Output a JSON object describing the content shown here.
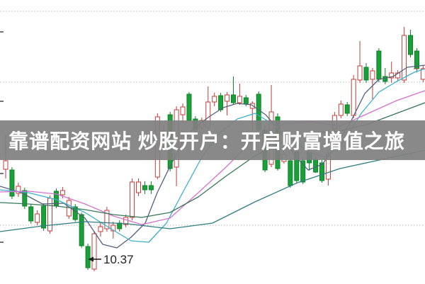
{
  "banner": {
    "text": "靠谱配资网站 炒股开户：开启财富增值之旅",
    "background": "#808080",
    "text_color": "#ffffff"
  },
  "chart_data": {
    "type": "candlestick",
    "title": "",
    "xlabel": "",
    "ylabel": "",
    "ylim": [
      10.19,
      14.2
    ],
    "grid": true,
    "gridline_prices": [
      14.04,
      13.04,
      12.03,
      11.02
    ],
    "tick_prices": [
      13.75,
      12.77,
      11.75,
      10.78
    ],
    "colors": {
      "up_stroke": "#c23b3b",
      "up_fill": "#ffffff",
      "down_stroke": "#0e8128",
      "down_fill": "#19a038",
      "grid": "#b3b3b3",
      "annotation": "#222222"
    },
    "candles": [
      [
        11.81,
        12.3,
        11.68,
        11.93
      ],
      [
        11.8,
        11.84,
        11.39,
        11.43
      ],
      [
        11.47,
        11.62,
        11.42,
        11.57
      ],
      [
        11.51,
        11.55,
        11.25,
        11.29
      ],
      [
        11.28,
        11.32,
        11.04,
        11.08
      ],
      [
        11.06,
        11.23,
        11.02,
        11.18
      ],
      [
        11.29,
        11.33,
        10.94,
        10.98
      ],
      [
        10.94,
        11.44,
        10.9,
        11.4
      ],
      [
        11.5,
        11.54,
        11.26,
        11.3
      ],
      [
        11.45,
        11.56,
        11.4,
        11.51
      ],
      [
        11.15,
        11.42,
        11.11,
        11.37
      ],
      [
        11.28,
        11.32,
        11.07,
        11.1
      ],
      [
        11.17,
        11.2,
        10.7,
        10.73
      ],
      [
        10.72,
        10.76,
        10.39,
        10.42
      ],
      [
        10.4,
        10.94,
        10.37,
        10.9
      ],
      [
        10.93,
        11.07,
        10.86,
        11.0
      ],
      [
        10.97,
        11.28,
        10.93,
        11.23
      ],
      [
        10.94,
        11.07,
        10.83,
        11.02
      ],
      [
        11.05,
        11.09,
        10.93,
        10.97
      ],
      [
        11.03,
        11.17,
        10.99,
        11.13
      ],
      [
        11.13,
        11.68,
        11.09,
        11.63
      ],
      [
        11.48,
        11.68,
        11.43,
        11.63
      ],
      [
        11.58,
        11.64,
        11.46,
        11.52
      ],
      [
        11.58,
        11.64,
        11.46,
        11.52
      ],
      [
        11.7,
        12.6,
        11.67,
        12.55
      ],
      [
        12.13,
        12.44,
        12.09,
        12.35
      ],
      [
        12.58,
        12.62,
        11.78,
        11.82
      ],
      [
        11.84,
        12.7,
        11.57,
        12.65
      ],
      [
        12.58,
        12.74,
        12.47,
        12.69
      ],
      [
        12.87,
        12.9,
        12.47,
        12.5
      ],
      [
        12.52,
        12.56,
        12.34,
        12.37
      ],
      [
        12.4,
        12.54,
        12.37,
        12.5
      ],
      [
        12.4,
        12.98,
        12.37,
        12.76
      ],
      [
        12.76,
        12.89,
        12.7,
        12.84
      ],
      [
        12.85,
        12.89,
        12.62,
        12.65
      ],
      [
        12.77,
        12.9,
        12.57,
        12.86
      ],
      [
        12.86,
        13.12,
        12.72,
        12.75
      ],
      [
        12.75,
        13.02,
        12.72,
        12.84
      ],
      [
        12.82,
        12.86,
        12.7,
        12.73
      ],
      [
        12.67,
        12.77,
        12.37,
        12.74
      ],
      [
        12.87,
        12.91,
        12.34,
        12.37
      ],
      [
        12.36,
        12.42,
        11.77,
        11.8
      ],
      [
        11.88,
        13.0,
        11.84,
        12.62
      ],
      [
        12.55,
        12.6,
        11.79,
        11.82
      ],
      [
        11.92,
        12.06,
        11.89,
        12.02
      ],
      [
        11.93,
        11.98,
        11.55,
        11.58
      ],
      [
        12.05,
        12.08,
        11.62,
        11.65
      ],
      [
        11.93,
        11.97,
        11.6,
        11.63
      ],
      [
        12.05,
        12.08,
        11.79,
        11.9
      ],
      [
        11.95,
        11.99,
        11.76,
        11.77
      ],
      [
        11.9,
        11.94,
        11.62,
        11.65
      ],
      [
        11.67,
        12.08,
        11.58,
        12.02
      ],
      [
        12.38,
        12.62,
        12.32,
        12.57
      ],
      [
        12.57,
        12.78,
        12.53,
        12.73
      ],
      [
        12.72,
        12.76,
        12.56,
        12.6
      ],
      [
        12.57,
        13.14,
        12.53,
        13.08
      ],
      [
        13.07,
        13.62,
        13.03,
        13.27
      ],
      [
        13.25,
        13.31,
        13.03,
        13.07
      ],
      [
        13.08,
        13.24,
        12.8,
        13.2
      ],
      [
        13.48,
        13.52,
        13.04,
        13.08
      ],
      [
        13.12,
        13.24,
        13.01,
        13.05
      ],
      [
        13.1,
        13.33,
        13.03,
        13.17
      ],
      [
        13.1,
        13.21,
        13.06,
        13.17
      ],
      [
        13.07,
        13.82,
        13.03,
        13.7
      ],
      [
        13.7,
        13.78,
        13.39,
        13.43
      ],
      [
        13.48,
        13.52,
        13.18,
        13.23
      ],
      [
        13.08,
        13.27,
        13.04,
        13.23
      ]
    ],
    "moving_averages": [
      {
        "name": "ma5",
        "color": "#50607a",
        "points": [
          [
            0,
            11.57
          ],
          [
            30,
            11.48
          ],
          [
            60,
            11.32
          ],
          [
            90,
            11.33
          ],
          [
            120,
            11.12
          ],
          [
            145,
            10.75
          ],
          [
            165,
            10.7
          ],
          [
            185,
            10.85
          ],
          [
            205,
            11.05
          ],
          [
            222,
            11.48
          ],
          [
            240,
            11.85
          ],
          [
            258,
            12.2
          ],
          [
            275,
            12.4
          ],
          [
            295,
            12.55
          ],
          [
            315,
            12.68
          ],
          [
            335,
            12.74
          ],
          [
            355,
            12.72
          ],
          [
            375,
            12.58
          ],
          [
            395,
            12.35
          ],
          [
            415,
            12.02
          ],
          [
            435,
            11.8
          ],
          [
            455,
            11.88
          ],
          [
            475,
            12.15
          ],
          [
            495,
            12.48
          ],
          [
            515,
            12.88
          ],
          [
            535,
            13.08
          ],
          [
            555,
            13.12
          ],
          [
            575,
            13.25
          ],
          [
            600,
            13.28
          ]
        ]
      },
      {
        "name": "ma10",
        "color": "#3bb0c9",
        "points": [
          [
            0,
            11.52
          ],
          [
            40,
            11.48
          ],
          [
            80,
            11.38
          ],
          [
            120,
            11.2
          ],
          [
            155,
            10.98
          ],
          [
            185,
            10.8
          ],
          [
            210,
            10.78
          ],
          [
            235,
            11.05
          ],
          [
            260,
            11.52
          ],
          [
            285,
            11.98
          ],
          [
            310,
            12.32
          ],
          [
            335,
            12.52
          ],
          [
            360,
            12.6
          ],
          [
            385,
            12.45
          ],
          [
            410,
            12.25
          ],
          [
            435,
            12.05
          ],
          [
            460,
            11.98
          ],
          [
            485,
            12.2
          ],
          [
            510,
            12.6
          ],
          [
            535,
            12.9
          ],
          [
            560,
            13.05
          ],
          [
            585,
            13.18
          ],
          [
            600,
            13.23
          ]
        ]
      },
      {
        "name": "ma20",
        "color": "#d570cf",
        "points": [
          [
            0,
            11.49
          ],
          [
            40,
            11.5
          ],
          [
            80,
            11.46
          ],
          [
            120,
            11.32
          ],
          [
            160,
            11.15
          ],
          [
            200,
            11.03
          ],
          [
            240,
            11.12
          ],
          [
            280,
            11.48
          ],
          [
            320,
            11.85
          ],
          [
            360,
            12.25
          ],
          [
            400,
            12.45
          ],
          [
            440,
            12.48
          ],
          [
            480,
            12.42
          ],
          [
            520,
            12.6
          ],
          [
            560,
            12.78
          ],
          [
            600,
            12.92
          ]
        ]
      },
      {
        "name": "ma30",
        "color": "#35785a",
        "points": [
          [
            0,
            11.34
          ],
          [
            40,
            11.32
          ],
          [
            80,
            11.29
          ],
          [
            120,
            11.24
          ],
          [
            160,
            11.17
          ],
          [
            200,
            11.13
          ],
          [
            240,
            11.2
          ],
          [
            280,
            11.42
          ],
          [
            320,
            11.72
          ],
          [
            360,
            12.0
          ],
          [
            400,
            12.2
          ],
          [
            440,
            12.32
          ],
          [
            480,
            12.35
          ],
          [
            520,
            12.45
          ],
          [
            560,
            12.6
          ],
          [
            600,
            12.75
          ]
        ]
      },
      {
        "name": "ma60",
        "color": "#2f7d82",
        "points": [
          [
            0,
            10.93
          ],
          [
            60,
            11.01
          ],
          [
            120,
            11.07
          ],
          [
            180,
            11.04
          ],
          [
            240,
            10.97
          ],
          [
            300,
            11.05
          ],
          [
            360,
            11.35
          ],
          [
            420,
            11.62
          ],
          [
            480,
            11.82
          ],
          [
            540,
            11.95
          ],
          [
            600,
            12.08
          ]
        ]
      }
    ],
    "low_annotation": {
      "label": "10.37",
      "price": 10.37,
      "candle_index": 14,
      "arrow": "left"
    },
    "last_price_line": {
      "price": 13.23,
      "color": "#cc3333"
    }
  }
}
